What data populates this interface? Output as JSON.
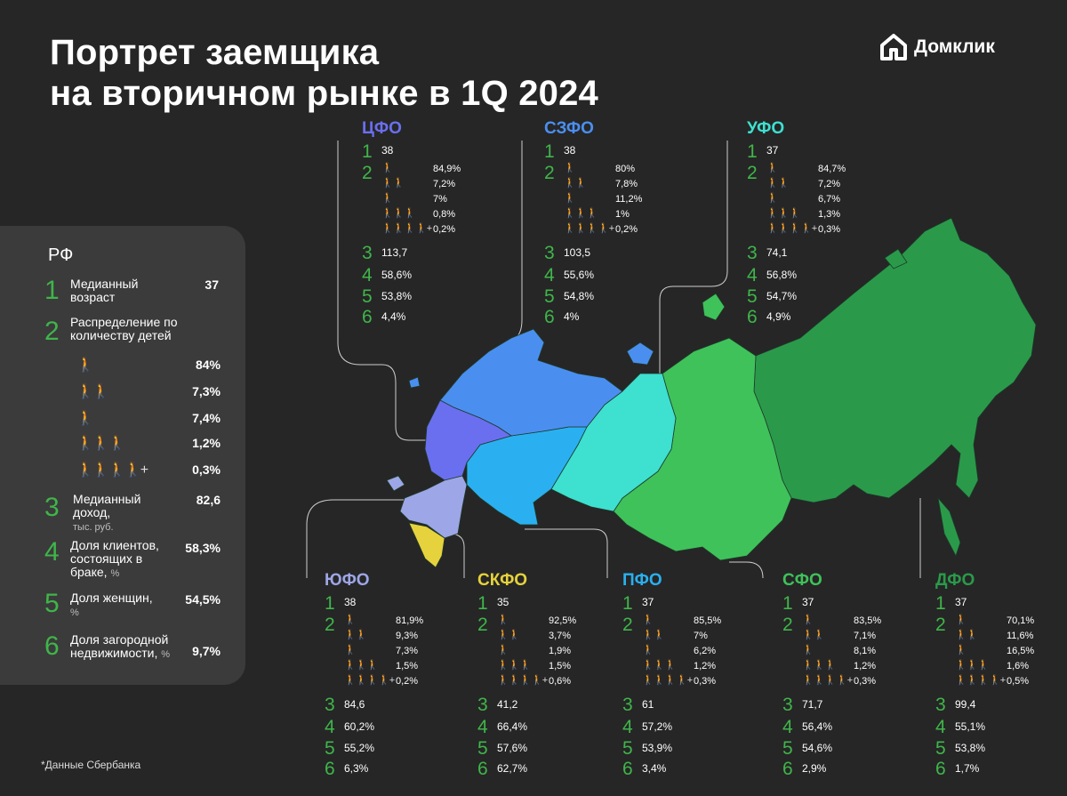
{
  "title": {
    "line1": "Портрет заемщика",
    "line2": "на вторичном рынке в 1Q 2024"
  },
  "brand": {
    "name": "Домклик",
    "icon": "house-logo-icon"
  },
  "colors": {
    "accent_green": "#3fb54a",
    "background": "#262626",
    "panel": "#3b3b3b"
  },
  "rf": {
    "title": "РФ",
    "numbers": [
      "1",
      "2",
      "3",
      "4",
      "5",
      "6"
    ],
    "age_label": "Медианный возраст",
    "age_value": "37",
    "kids_label": "Распределение по количеству детей",
    "kids": [
      {
        "icon": "adult-icon",
        "value": "84%"
      },
      {
        "icon": "adult-one-child-icon",
        "value": "7,3%"
      },
      {
        "icon": "adult-two-children-icon",
        "value": "7,4%"
      },
      {
        "icon": "adult-three-children-icon",
        "value": "1,2%"
      },
      {
        "icon": "adult-four-plus-children-icon",
        "value": "0,3%"
      }
    ],
    "income_label": "Медианный доход,",
    "income_unit": "тыс. руб.",
    "income_value": "82,6",
    "married_label": "Доля клиентов, состоящих в браке,",
    "married_unit": "%",
    "married_value": "58,3%",
    "women_label": "Доля женщин,",
    "women_unit": "%",
    "women_value": "54,5%",
    "country_label": "Доля загородной недвижимости,",
    "country_unit": "%",
    "country_value": "9,7%"
  },
  "kids_plus": "+",
  "regions": [
    {
      "name": "ЦФО",
      "color": "#6a6ff0",
      "age": "38",
      "kids": [
        "84,9%",
        "7,2%",
        "7%",
        "0,8%",
        "0,2%"
      ],
      "income": "113,7",
      "married": "58,6%",
      "women": "53,8%",
      "country": "4,4%"
    },
    {
      "name": "СЗФО",
      "color": "#4a8ff0",
      "age": "38",
      "kids": [
        "80%",
        "7,8%",
        "11,2%",
        "1%",
        "0,2%"
      ],
      "income": "103,5",
      "married": "55,6%",
      "women": "54,8%",
      "country": "4%"
    },
    {
      "name": "УФО",
      "color": "#3ee0d0",
      "age": "37",
      "kids": [
        "84,7%",
        "7,2%",
        "6,7%",
        "1,3%",
        "0,3%"
      ],
      "income": "74,1",
      "married": "56,8%",
      "women": "54,7%",
      "country": "4,9%"
    },
    {
      "name": "ЮФО",
      "color": "#9da6e6",
      "age": "38",
      "kids": [
        "81,9%",
        "9,3%",
        "7,3%",
        "1,5%",
        "0,2%"
      ],
      "income": "84,6",
      "married": "60,2%",
      "women": "55,2%",
      "country": "6,3%"
    },
    {
      "name": "СКФО",
      "color": "#e6d23c",
      "age": "35",
      "kids": [
        "92,5%",
        "3,7%",
        "1,9%",
        "1,5%",
        "0,6%"
      ],
      "income": "41,2",
      "married": "66,4%",
      "women": "57,6%",
      "country": "62,7%"
    },
    {
      "name": "ПФО",
      "color": "#2ab0f0",
      "age": "37",
      "kids": [
        "85,5%",
        "7%",
        "6,2%",
        "1,2%",
        "0,3%"
      ],
      "income": "61",
      "married": "57,2%",
      "women": "53,9%",
      "country": "3,4%"
    },
    {
      "name": "СФО",
      "color": "#3fc25a",
      "age": "37",
      "kids": [
        "83,5%",
        "7,1%",
        "8,1%",
        "1,2%",
        "0,3%"
      ],
      "income": "71,7",
      "married": "56,4%",
      "women": "54,6%",
      "country": "2,9%"
    },
    {
      "name": "ДФО",
      "color": "#2a9a4a",
      "age": "37",
      "kids": [
        "70,1%",
        "11,6%",
        "16,5%",
        "1,6%",
        "0,5%"
      ],
      "income": "99,4",
      "married": "55,1%",
      "women": "53,8%",
      "country": "1,7%"
    }
  ],
  "footnote": "*Данные Сбербанка"
}
